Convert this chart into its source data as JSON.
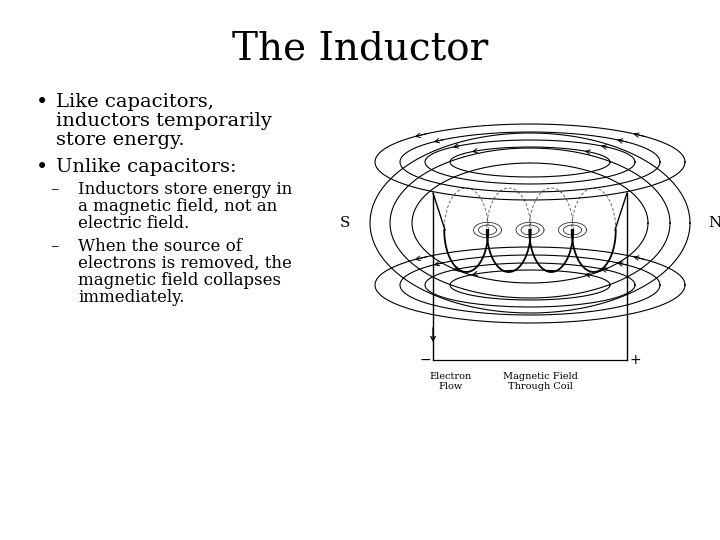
{
  "title": "The Inductor",
  "title_fontsize": 28,
  "title_font": "serif",
  "background_color": "#ffffff",
  "text_color": "#000000",
  "bullet1_line1": "Like capacitors,",
  "bullet1_line2": "inductors temporarily",
  "bullet1_line3": "store energy.",
  "bullet2": "Unlike capacitors:",
  "sub1_line1": "Inductors store energy in",
  "sub1_line2": "a magnetic field, not an",
  "sub1_line3": "electric field.",
  "sub2_line1": "When the source of",
  "sub2_line2": "electrons is removed, the",
  "sub2_line3": "magnetic field collapses",
  "sub2_line4": "immediately.",
  "bullet_fontsize": 14,
  "sub_fontsize": 12,
  "font": "serif",
  "img_label_S": "S",
  "img_label_N": "N",
  "img_label_electron": "Electron\nFlow",
  "img_label_magnetic": "Magnetic Field\nThrough Coil",
  "img_label_plus": "+",
  "img_label_minus": "−"
}
